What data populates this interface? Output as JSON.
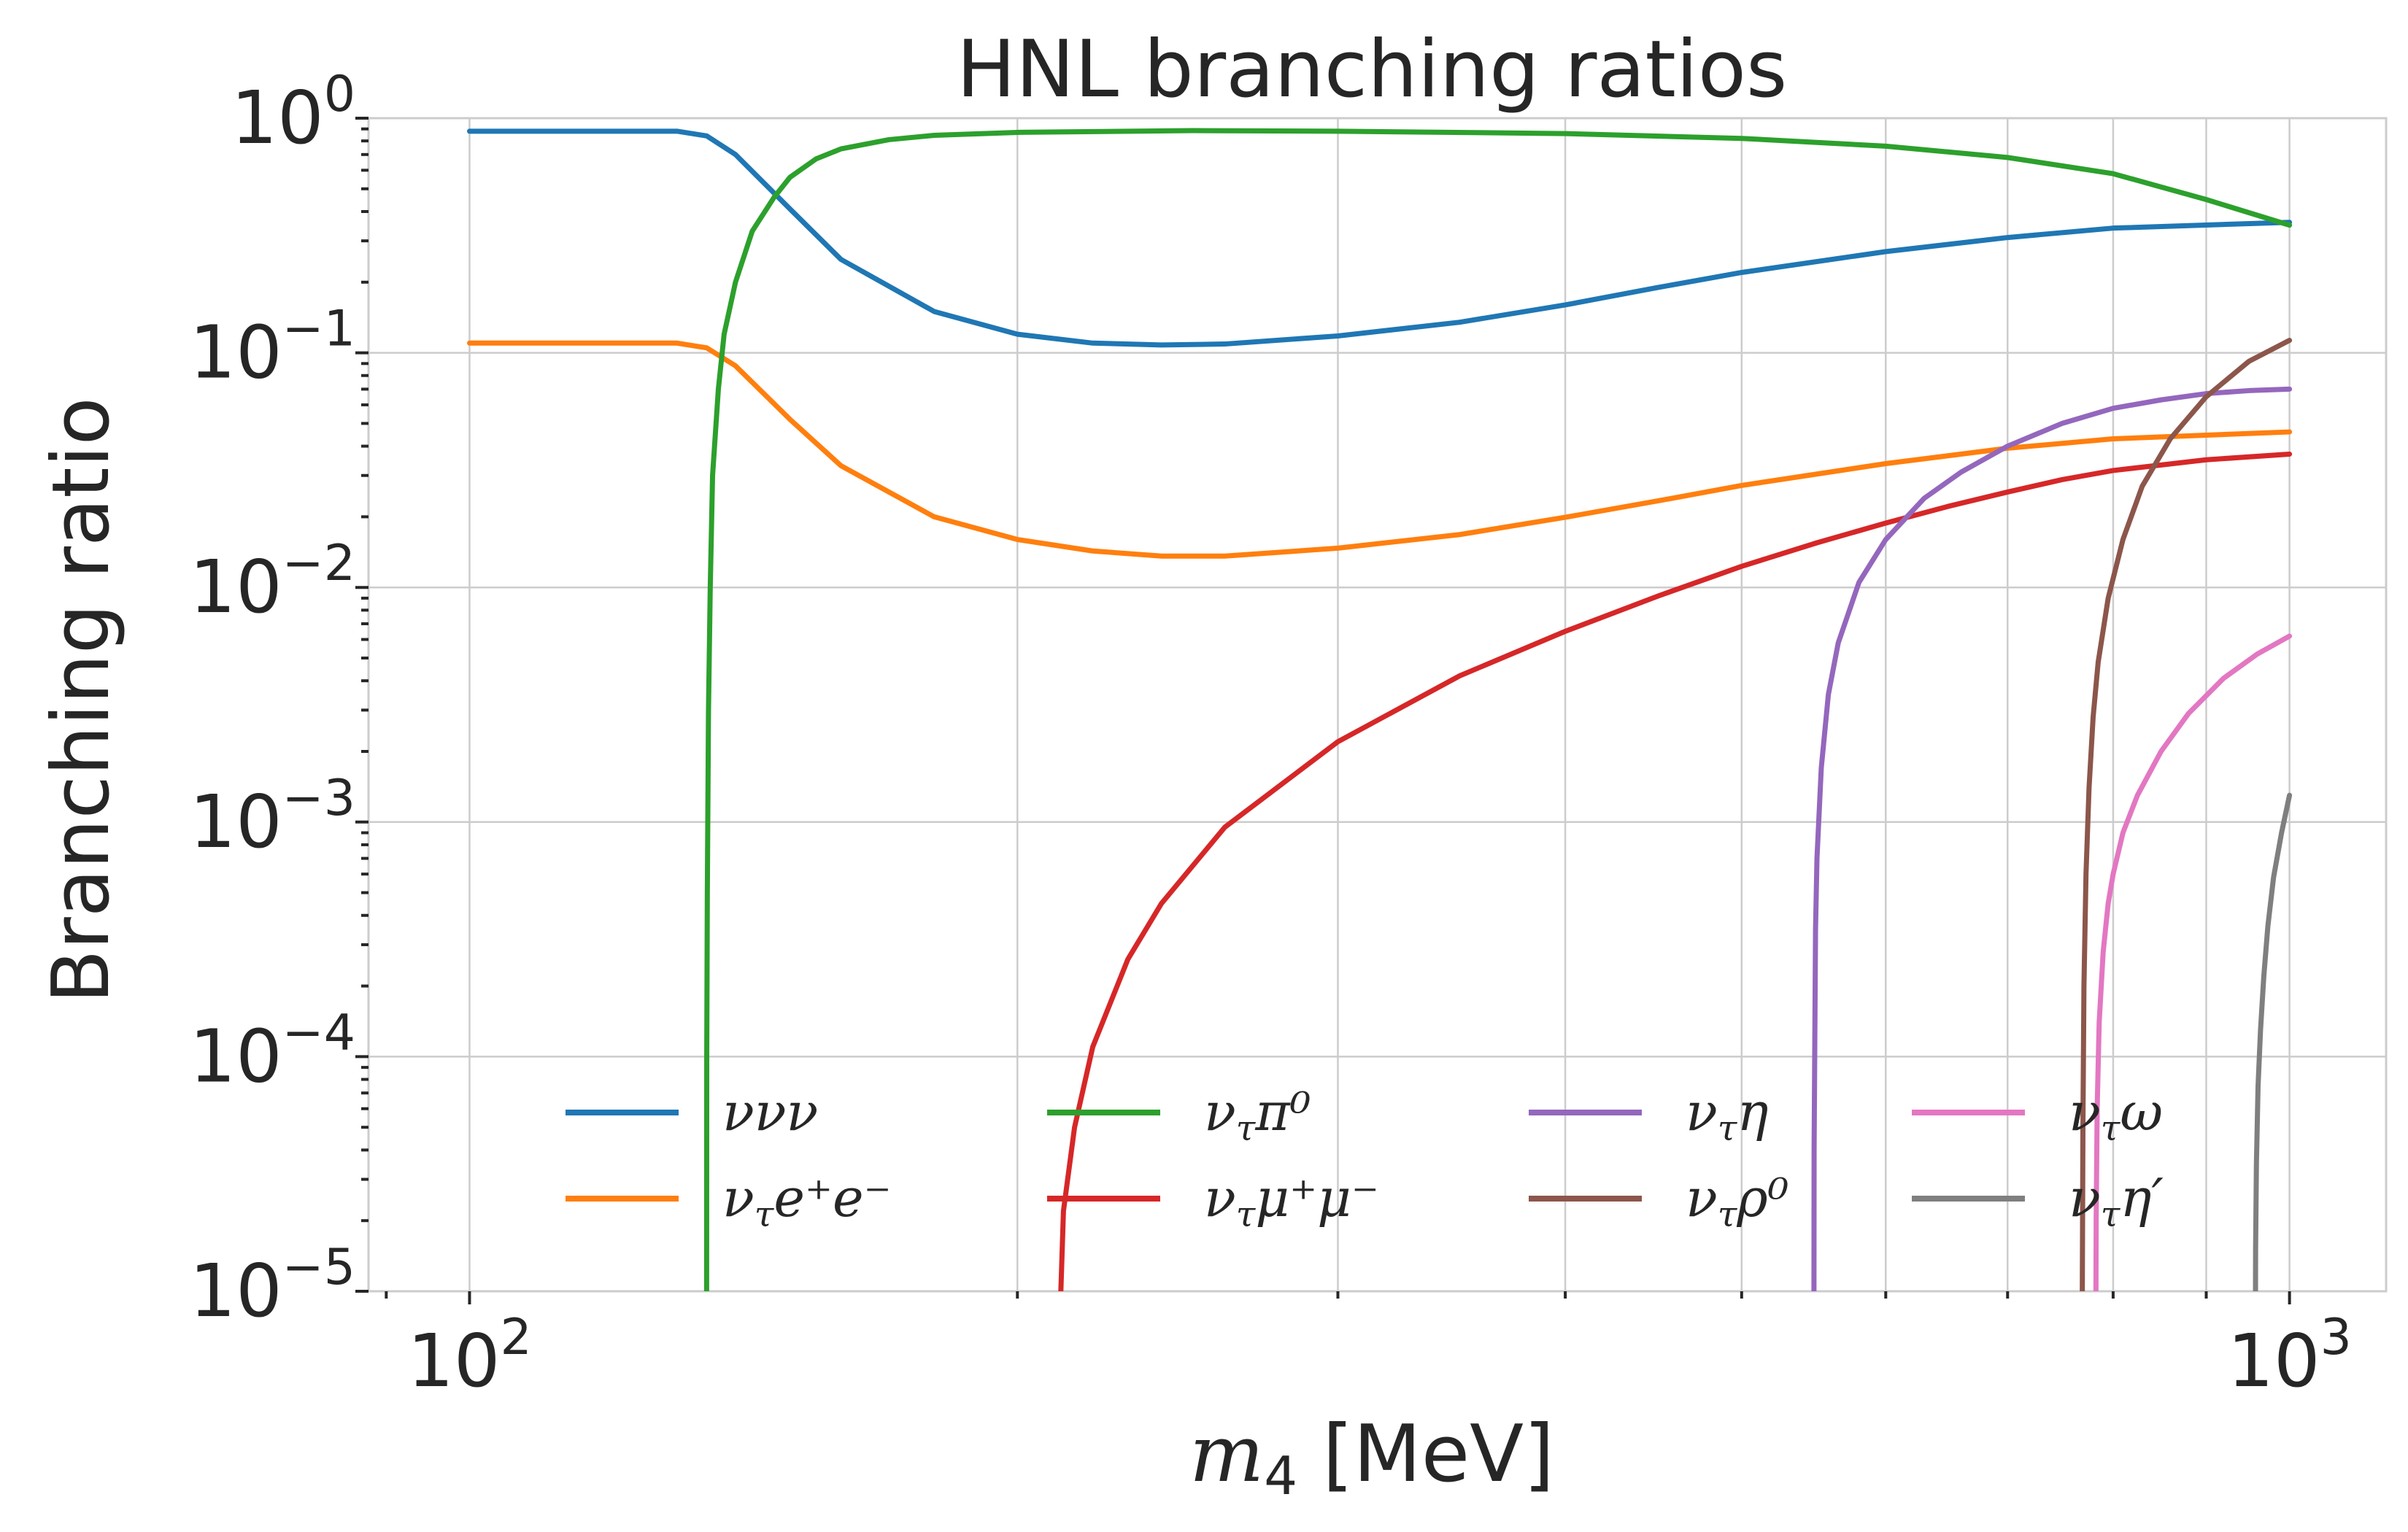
{
  "chart_data": {
    "type": "line",
    "title": "HNL branching ratios",
    "xlabel": "m_4 [MeV]",
    "xlabel_parts": {
      "symbol": "m",
      "subscript": "4",
      "unit": "[MeV]"
    },
    "ylabel": "Branching ratio",
    "xscale": "log",
    "yscale": "log",
    "xlim": [
      88,
      1130
    ],
    "ylim": [
      1e-05,
      1
    ],
    "x_ticks": [
      {
        "value": 100,
        "base": "10",
        "exp": "2"
      },
      {
        "value": 1000,
        "base": "10",
        "exp": "3"
      }
    ],
    "y_ticks": [
      {
        "value": 1,
        "base": "10",
        "exp": "0"
      },
      {
        "value": 0.1,
        "base": "10",
        "exp": "−1"
      },
      {
        "value": 0.01,
        "base": "10",
        "exp": "−2"
      },
      {
        "value": 0.001,
        "base": "10",
        "exp": "−3"
      },
      {
        "value": 0.0001,
        "base": "10",
        "exp": "−4"
      },
      {
        "value": 1e-05,
        "base": "10",
        "exp": "−5"
      }
    ],
    "grid": true,
    "legend_position": "lower-center",
    "legend_columns": 4,
    "series": [
      {
        "name": "ννν",
        "color": "#1f77b4",
        "x": [
          100,
          130,
          135,
          140,
          150,
          160,
          180,
          200,
          220,
          240,
          260,
          300,
          350,
          400,
          450,
          500,
          600,
          700,
          800,
          1000
        ],
        "y": [
          0.88,
          0.88,
          0.84,
          0.7,
          0.41,
          0.25,
          0.15,
          0.12,
          0.11,
          0.108,
          0.109,
          0.118,
          0.135,
          0.16,
          0.19,
          0.22,
          0.27,
          0.31,
          0.34,
          0.36
        ]
      },
      {
        "name": "ν_τe⁺e⁻",
        "color": "#ff7f0e",
        "x": [
          100,
          130,
          135,
          140,
          150,
          160,
          180,
          200,
          220,
          240,
          260,
          300,
          350,
          400,
          450,
          500,
          600,
          700,
          800,
          1000
        ],
        "y": [
          0.11,
          0.11,
          0.105,
          0.088,
          0.052,
          0.033,
          0.02,
          0.016,
          0.0143,
          0.0136,
          0.0136,
          0.0147,
          0.0168,
          0.0199,
          0.0234,
          0.0272,
          0.0337,
          0.0392,
          0.043,
          0.046
        ]
      },
      {
        "name": "ν_τπ⁰",
        "color": "#2ca02c",
        "x": [
          134.98,
          135.0,
          135.1,
          135.3,
          135.6,
          136,
          137,
          138,
          140,
          143,
          147,
          150,
          155,
          160,
          170,
          180,
          200,
          250,
          300,
          400,
          500,
          600,
          700,
          800,
          900,
          1000
        ],
        "y": [
          1e-05,
          0.0001,
          0.0005,
          0.003,
          0.01,
          0.03,
          0.07,
          0.12,
          0.2,
          0.33,
          0.46,
          0.56,
          0.67,
          0.74,
          0.81,
          0.845,
          0.87,
          0.885,
          0.88,
          0.86,
          0.82,
          0.76,
          0.68,
          0.58,
          0.45,
          0.35
        ]
      },
      {
        "name": "ν_τμ⁺μ⁻",
        "color": "#d62728",
        "x": [
          211.3,
          212,
          215,
          220,
          230,
          240,
          260,
          300,
          350,
          400,
          450,
          500,
          550,
          600,
          650,
          700,
          750,
          800,
          900,
          1000
        ],
        "y": [
          1e-05,
          2.2e-05,
          5e-05,
          0.00011,
          0.00026,
          0.00045,
          0.00095,
          0.0022,
          0.0042,
          0.0065,
          0.0092,
          0.0123,
          0.0155,
          0.0188,
          0.0222,
          0.0255,
          0.0288,
          0.0315,
          0.035,
          0.037
        ]
      },
      {
        "name": "ν_τη",
        "color": "#9467bd",
        "x": [
          547.9,
          548,
          549,
          550,
          553,
          558,
          565,
          580,
          600,
          630,
          660,
          700,
          750,
          800,
          850,
          900,
          950,
          1000
        ],
        "y": [
          1e-05,
          4e-05,
          0.00035,
          0.0007,
          0.0017,
          0.0035,
          0.0058,
          0.0105,
          0.016,
          0.024,
          0.031,
          0.04,
          0.05,
          0.058,
          0.063,
          0.067,
          0.069,
          0.07
        ]
      },
      {
        "name": "ν_τρ⁰",
        "color": "#8c564b",
        "x": [
          769.4,
          770,
          771,
          773,
          776,
          780,
          785,
          795,
          810,
          830,
          860,
          900,
          950,
          1000
        ],
        "y": [
          1e-05,
          5e-05,
          0.0002,
          0.0006,
          0.0014,
          0.0028,
          0.0048,
          0.009,
          0.016,
          0.027,
          0.043,
          0.065,
          0.092,
          0.113
        ]
      },
      {
        "name": "ν_τω",
        "color": "#e377c2",
        "x": [
          782.8,
          783,
          784,
          786,
          790,
          795,
          800,
          810,
          825,
          850,
          880,
          920,
          960,
          1000
        ],
        "y": [
          1e-05,
          2e-05,
          6e-05,
          0.00014,
          0.00028,
          0.00045,
          0.0006,
          0.0009,
          0.0013,
          0.002,
          0.0029,
          0.0041,
          0.0052,
          0.0062
        ]
      },
      {
        "name": "ν_τη′",
        "color": "#7f7f7f",
        "x": [
          957.9,
          958,
          959,
          961,
          964,
          968,
          973,
          980,
          990,
          1000
        ],
        "y": [
          1e-05,
          1.5e-05,
          3.5e-05,
          7.5e-05,
          0.00013,
          0.00022,
          0.00036,
          0.00058,
          0.0009,
          0.0013
        ]
      }
    ],
    "legend_labels": [
      {
        "base": "ν",
        "sub": "",
        "rest": "νν"
      },
      {
        "base": "ν",
        "sub": "τ",
        "rest": "e⁺e⁻"
      },
      {
        "base": "ν",
        "sub": "τ",
        "rest": "π⁰"
      },
      {
        "base": "ν",
        "sub": "τ",
        "rest": "μ⁺μ⁻"
      },
      {
        "base": "ν",
        "sub": "τ",
        "rest": "η"
      },
      {
        "base": "ν",
        "sub": "τ",
        "rest": "ρ⁰"
      },
      {
        "base": "ν",
        "sub": "τ",
        "rest": "ω"
      },
      {
        "base": "ν",
        "sub": "τ",
        "rest": "η′"
      }
    ]
  }
}
